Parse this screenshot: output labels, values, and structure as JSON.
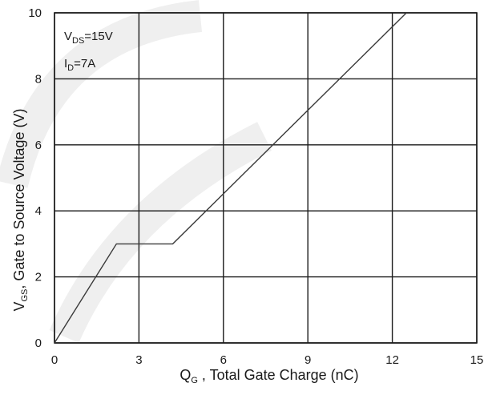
{
  "chart_data": {
    "type": "line",
    "title": "",
    "xlabel": {
      "main": "Q",
      "sub": "G",
      "rest": " , Total Gate Charge (nC)"
    },
    "ylabel": {
      "main": "V",
      "sub": "GS",
      "rest": ", Gate to Source Voltage (V)"
    },
    "xlim": [
      0,
      15
    ],
    "ylim": [
      0,
      10
    ],
    "x_ticks": [
      0,
      3,
      6,
      9,
      12,
      15
    ],
    "y_ticks": [
      0,
      2,
      4,
      6,
      8,
      10
    ],
    "grid": true,
    "series": [
      {
        "x": [
          0,
          2.2,
          4.2,
          12.5
        ],
        "y": [
          0,
          3.0,
          3.0,
          10
        ]
      }
    ],
    "annotations": {
      "vds": {
        "main": "V",
        "sub": "DS",
        "rest": "=15V"
      },
      "id": {
        "main": "I",
        "sub": "D",
        "rest": "=7A"
      }
    },
    "colors": {
      "line": "#3a3a3a",
      "grid": "#1a1a1a",
      "watermark": "#efefef"
    }
  }
}
